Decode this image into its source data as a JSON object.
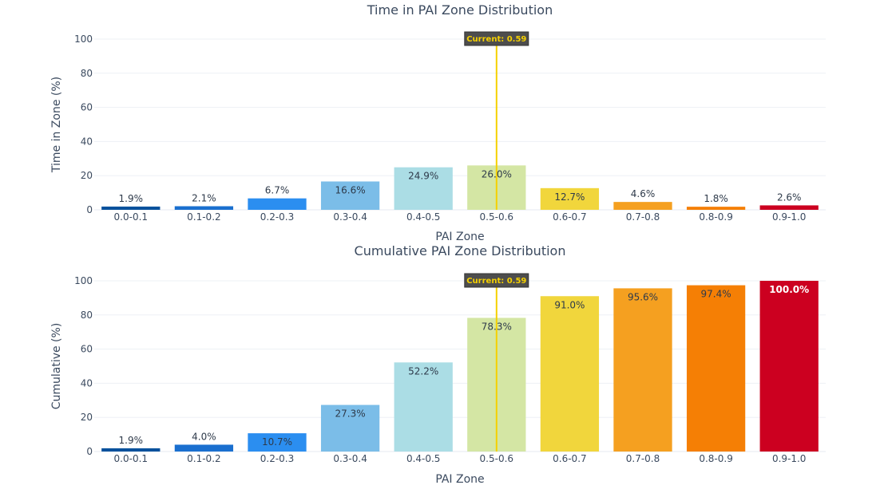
{
  "chart_data": [
    {
      "type": "bar",
      "title": "Time in PAI Zone Distribution",
      "xlabel": "PAI Zone",
      "ylabel": "Time in Zone (%)",
      "ylim": [
        0,
        100
      ],
      "yticks": [
        0,
        20,
        40,
        60,
        80,
        100
      ],
      "grid": true,
      "categories": [
        "0.0-0.1",
        "0.1-0.2",
        "0.2-0.3",
        "0.3-0.4",
        "0.4-0.5",
        "0.5-0.6",
        "0.6-0.7",
        "0.7-0.8",
        "0.8-0.9",
        "0.9-1.0"
      ],
      "values": [
        1.9,
        2.1,
        6.7,
        16.6,
        24.9,
        26.0,
        12.7,
        4.6,
        1.8,
        2.6
      ],
      "labels": [
        "1.9%",
        "2.1%",
        "6.7%",
        "16.6%",
        "24.9%",
        "26.0%",
        "12.7%",
        "4.6%",
        "1.8%",
        "2.6%"
      ],
      "marker": {
        "value": 0.59,
        "label": "Current: 0.59"
      }
    },
    {
      "type": "bar",
      "title": "Cumulative PAI Zone Distribution",
      "xlabel": "PAI Zone",
      "ylabel": "Cumulative (%)",
      "ylim": [
        0,
        100
      ],
      "yticks": [
        0,
        20,
        40,
        60,
        80,
        100
      ],
      "grid": true,
      "categories": [
        "0.0-0.1",
        "0.1-0.2",
        "0.2-0.3",
        "0.3-0.4",
        "0.4-0.5",
        "0.5-0.6",
        "0.6-0.7",
        "0.7-0.8",
        "0.8-0.9",
        "0.9-1.0"
      ],
      "values": [
        1.9,
        4.0,
        10.7,
        27.3,
        52.2,
        78.3,
        91.0,
        95.6,
        97.4,
        100.0
      ],
      "labels": [
        "1.9%",
        "4.0%",
        "10.7%",
        "27.3%",
        "52.2%",
        "78.3%",
        "91.0%",
        "95.6%",
        "97.4%",
        "100.0%"
      ],
      "marker": {
        "value": 0.59,
        "label": "Current: 0.59"
      }
    }
  ],
  "colors": {
    "bars": [
      "#08519c",
      "#1a6fcf",
      "#2b8ef0",
      "#7bbde8",
      "#abdde5",
      "#d4e6a4",
      "#f1d63c",
      "#f5a020",
      "#f57f05",
      "#cc0020"
    ],
    "marker_line": "#f5d000",
    "marker_box": "#4d4d4d",
    "grid": "#edf0f5",
    "text": "#3b4a5f"
  }
}
